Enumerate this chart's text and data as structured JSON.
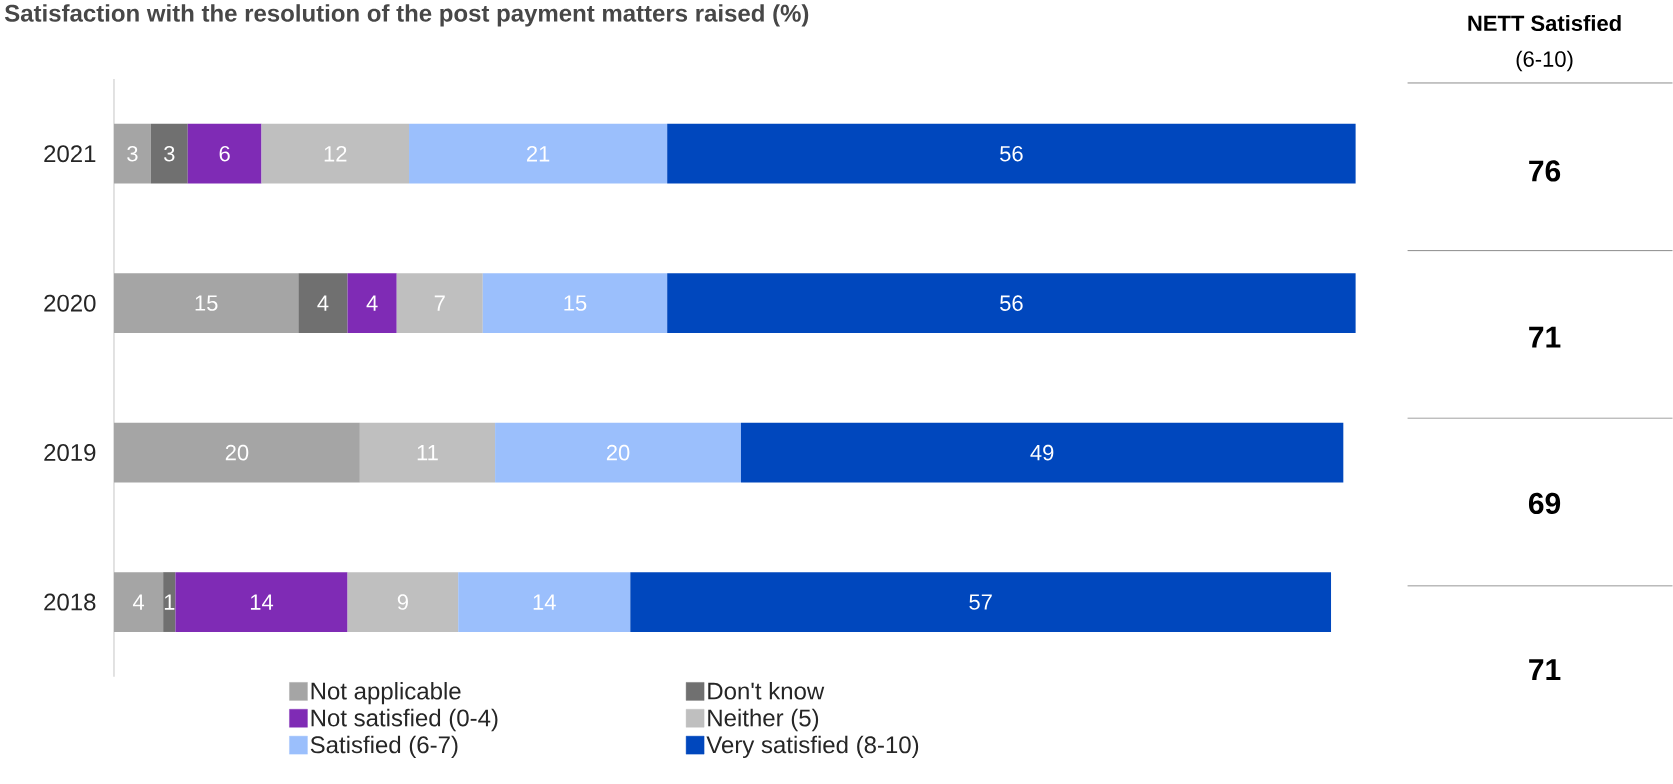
{
  "chart_data": {
    "type": "bar",
    "orientation": "horizontal",
    "stacked": true,
    "data_labels": true,
    "legend": "bottom",
    "title": "Satisfaction with the resolution of the post payment matters raised (%)",
    "categories": [
      "2021",
      "2020",
      "2019",
      "2018"
    ],
    "series": [
      {
        "name": "Not applicable",
        "color": "#a5a5a5",
        "values": [
          3,
          15,
          20,
          4
        ]
      },
      {
        "name": "Don't know",
        "color": "#707070",
        "values": [
          3,
          4,
          null,
          1
        ]
      },
      {
        "name": "Not satisfied (0-4)",
        "color": "#7f2bb5",
        "values": [
          6,
          4,
          null,
          14
        ]
      },
      {
        "name": "Neither (5)",
        "color": "#bfbfbf",
        "values": [
          12,
          7,
          11,
          9
        ]
      },
      {
        "name": "Satisfied (6-7)",
        "color": "#9bbffc",
        "values": [
          21,
          15,
          20,
          14
        ]
      },
      {
        "name": "Very satisfied (8-10)",
        "color": "#0047bd",
        "values": [
          56,
          56,
          49,
          57
        ]
      }
    ],
    "annotations": [
      "NETT Satisfied",
      "(6-10)",
      "76",
      "71",
      "69",
      "71"
    ]
  }
}
